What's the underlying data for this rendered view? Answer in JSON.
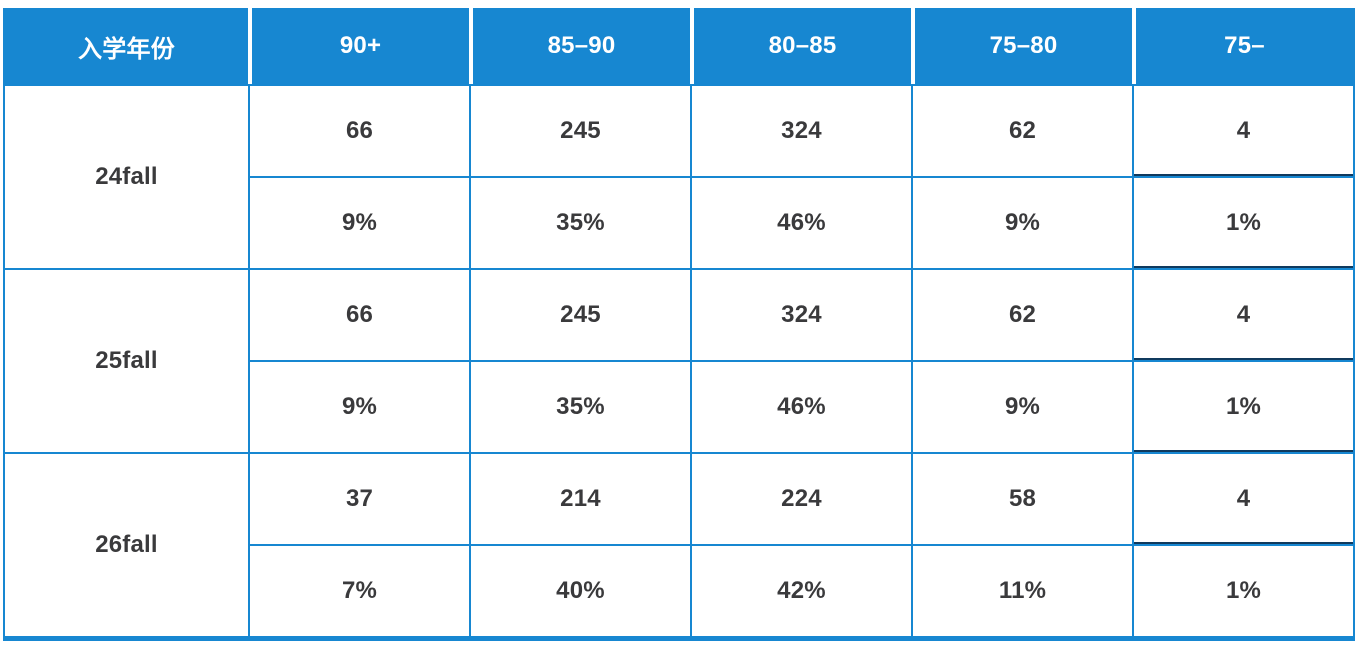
{
  "chart_data": {
    "type": "table",
    "columns": [
      "入学年份",
      "90+",
      "85–90",
      "80–85",
      "75–80",
      "75–"
    ],
    "rows": [
      {
        "year": "24fall",
        "counts": [
          "66",
          "245",
          "324",
          "62",
          "4"
        ],
        "percents": [
          "9%",
          "35%",
          "46%",
          "9%",
          "1%"
        ]
      },
      {
        "year": "25fall",
        "counts": [
          "66",
          "245",
          "324",
          "62",
          "4"
        ],
        "percents": [
          "9%",
          "35%",
          "46%",
          "9%",
          "1%"
        ]
      },
      {
        "year": "26fall",
        "counts": [
          "37",
          "214",
          "224",
          "58",
          "4"
        ],
        "percents": [
          "7%",
          "40%",
          "42%",
          "11%",
          "1%"
        ]
      }
    ],
    "layout": {
      "header_position": "top",
      "year_cells_span_two_rows": true,
      "grid": "on"
    }
  },
  "colors": {
    "header_bg": "#1787D1",
    "header_text": "#FFFFFF",
    "grid_line": "#1787D1",
    "dark_divider": "#103A5E",
    "body_text": "#3A3A3C",
    "background": "#FFFFFF"
  }
}
